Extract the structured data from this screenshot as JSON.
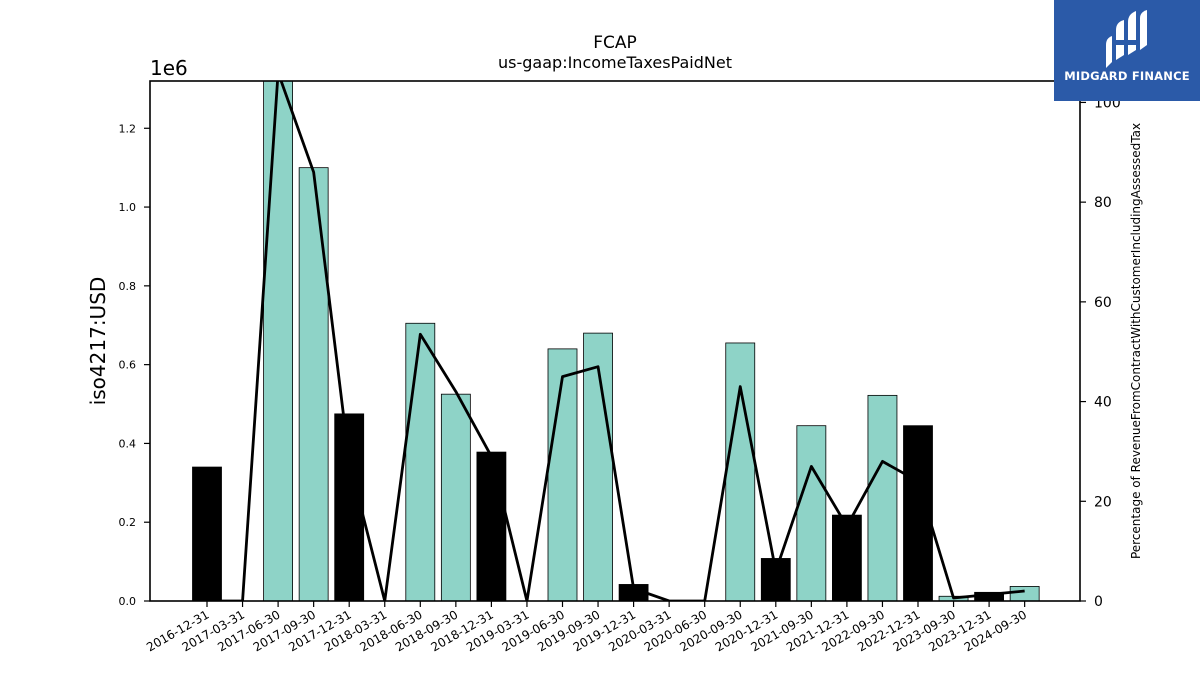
{
  "chart_data": {
    "type": "bar",
    "title": "FCAP",
    "subtitle": "us-gaap:IncomeTaxesPaidNet",
    "ylabel": "iso4217:USD",
    "y_offset_label": "1e6",
    "y2label": "Percentage of RevenueFromContractWithCustomerIncludingAssessedTax",
    "ylim": [
      0,
      1320000
    ],
    "y2lim": [
      0,
      104.3
    ],
    "yticks": [
      "0.0",
      "0.2",
      "0.4",
      "0.6",
      "0.8",
      "1.0",
      "1.2"
    ],
    "y2ticks": [
      "0",
      "20",
      "40",
      "60",
      "80",
      "100"
    ],
    "categories": [
      "2016-12-31",
      "2017-03-31",
      "2017-06-30",
      "2017-09-30",
      "2017-12-31",
      "2018-03-31",
      "2018-06-30",
      "2018-09-30",
      "2018-12-31",
      "2019-03-31",
      "2019-06-30",
      "2019-09-30",
      "2019-12-31",
      "2020-03-31",
      "2020-06-30",
      "2020-09-30",
      "2020-12-31",
      "2021-09-30",
      "2021-12-31",
      "2022-09-30",
      "2022-12-31",
      "2023-09-30",
      "2023-12-31",
      "2024-09-30"
    ],
    "values": [
      340000,
      0,
      1330000,
      1100000,
      475000,
      0,
      705000,
      525000,
      378000,
      0,
      640000,
      680000,
      42000,
      0,
      0,
      655000,
      108000,
      445000,
      218000,
      522000,
      445000,
      12000,
      22000,
      37000
    ],
    "bar_kind": [
      "annual",
      "quarter",
      "quarter",
      "quarter",
      "annual",
      "quarter",
      "quarter",
      "quarter",
      "annual",
      "quarter",
      "quarter",
      "quarter",
      "annual",
      "quarter",
      "quarter",
      "quarter",
      "annual",
      "quarter",
      "annual",
      "quarter",
      "annual",
      "quarter",
      "annual",
      "quarter"
    ],
    "line_series": {
      "values": [
        0,
        0,
        106,
        86,
        28,
        0,
        53.5,
        42,
        29,
        0,
        45,
        47,
        2.5,
        0,
        0,
        43,
        6,
        27,
        15,
        28,
        24,
        0.6,
        1.3,
        2
      ]
    },
    "colors": {
      "quarter": "#8ed3c7",
      "annual": "#000000",
      "line": "#000000",
      "edge": "#000000"
    },
    "grid": false
  },
  "logo": {
    "text": "MIDGARD FINANCE",
    "background": "#2b5aa8"
  }
}
